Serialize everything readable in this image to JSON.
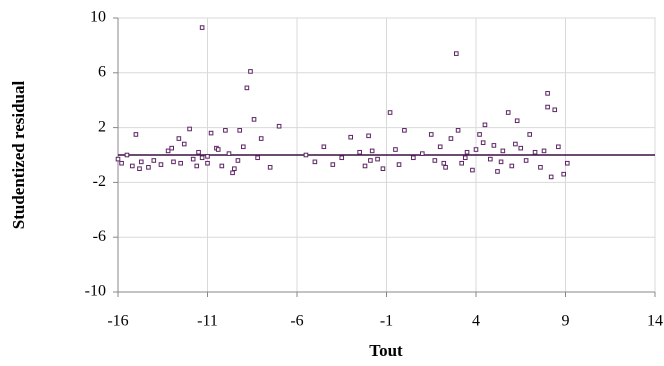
{
  "chart_data": {
    "type": "scatter",
    "x_label": "Tout",
    "y_label": "Studentized residual",
    "xlim": [
      -16,
      14
    ],
    "xticks": [
      -16,
      -11,
      -6,
      -1,
      4,
      9,
      14
    ],
    "ylim": [
      -10,
      10
    ],
    "yticks": [
      -10,
      -6,
      -2,
      2,
      6,
      10
    ],
    "grid": true,
    "reference_line": 0,
    "color": "#5b2463",
    "series": [
      {
        "x": [
          -16,
          -15.8,
          -15.5,
          -15.2,
          -15,
          -14.7,
          -14.3,
          -14,
          -13.6,
          -13.2,
          -12.9,
          -12.6,
          -12.3,
          -12,
          -11.8,
          -11.5,
          -11.3,
          -11,
          -10.8,
          -10.5,
          -10.2,
          -10,
          -9.8,
          -9.5,
          -9.3,
          -9.2,
          -9,
          -8.8,
          -8.6,
          -8.4,
          -8.2,
          -8,
          -7.5,
          -7,
          -5.5,
          -5,
          -4.5,
          -4,
          -3.5,
          -3,
          -2.5,
          -2.2,
          -2,
          -1.8,
          -1.5,
          -1.2,
          -0.8,
          -0.5,
          0,
          0.5,
          1,
          1.5,
          1.7,
          2,
          2.3,
          2.6,
          2.9,
          3,
          3.2,
          3.5,
          3.8,
          4,
          4.2,
          4.5,
          4.8,
          5,
          5.2,
          5.5,
          5.8,
          6,
          6.3,
          6.5,
          6.8,
          7,
          7.3,
          7.6,
          8,
          8,
          8.2,
          8.4,
          8.6,
          8.9,
          9.1,
          -13,
          -11.6,
          -10.4,
          -9.6,
          3.4,
          4.4,
          5.4,
          6.2,
          2.2,
          -1.9,
          7.8,
          -0.3,
          -14.8,
          -12.5,
          -11.3,
          -11
        ],
        "values": [
          -0.3,
          -0.6,
          0,
          -0.8,
          1.5,
          -0.5,
          -0.9,
          -0.4,
          -0.7,
          0.3,
          -0.5,
          1.2,
          0.8,
          1.9,
          -0.3,
          0.2,
          9.3,
          -0.6,
          1.6,
          0.5,
          -0.8,
          1.8,
          0.1,
          -1.0,
          -0.4,
          1.8,
          0.6,
          4.9,
          6.1,
          2.6,
          -0.2,
          1.2,
          -0.9,
          2.1,
          0,
          -0.5,
          0.6,
          -0.7,
          -0.2,
          1.3,
          0.2,
          -0.8,
          1.4,
          0.3,
          -0.3,
          -1.0,
          3.1,
          0.4,
          1.8,
          -0.2,
          0.1,
          1.5,
          -0.4,
          0.6,
          -0.9,
          1.2,
          7.4,
          1.8,
          -0.6,
          0.2,
          -1.1,
          0.4,
          1.5,
          2.2,
          -0.3,
          0.7,
          -1.2,
          0.3,
          3.1,
          -0.8,
          2.5,
          0.5,
          -0.4,
          1.5,
          0.2,
          -0.9,
          4.5,
          3.5,
          -1.6,
          3.3,
          0.6,
          -1.4,
          -0.6,
          0.5,
          -0.8,
          0.4,
          -1.3,
          -0.2,
          0.9,
          -0.5,
          0.8,
          -0.6,
          -0.4,
          0.3,
          -0.7,
          -1.0,
          -0.6,
          -0.2,
          -0.1
        ]
      }
    ]
  }
}
